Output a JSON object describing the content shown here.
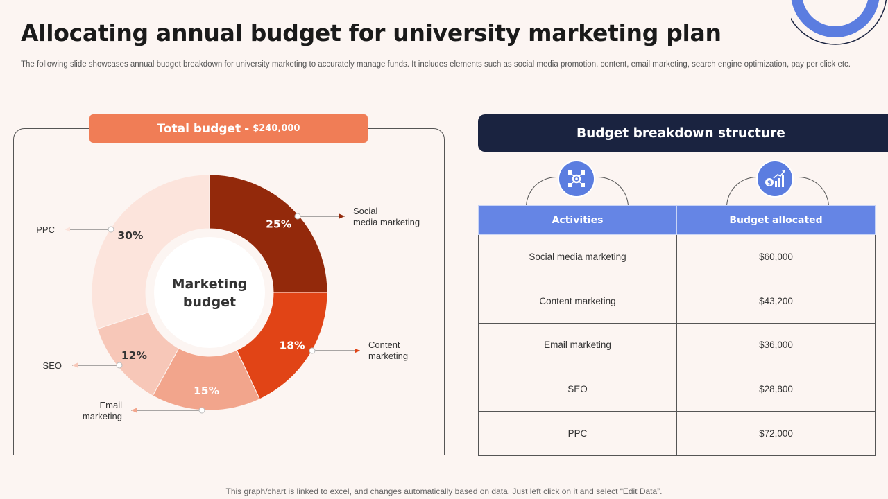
{
  "title": "Allocating annual budget for university marketing plan",
  "subtitle": "The following slide showcases annual budget breakdown for university marketing to accurately manage funds. It includes elements such as social media promotion, content, email marketing, search engine optimization, pay per click etc.",
  "total_budget": {
    "label": "Total budget",
    "separator": "-",
    "value": "$240,000"
  },
  "chart_data": {
    "type": "pie",
    "center_label_line1": "Marketing",
    "center_label_line2": "budget",
    "slices": [
      {
        "label_line1": "Social",
        "label_line2": "media marketing",
        "value": 25,
        "display": "25%",
        "color": "#93290b"
      },
      {
        "label_line1": "Content",
        "label_line2": "marketing",
        "value": 18,
        "display": "18%",
        "color": "#e14416"
      },
      {
        "label_line1": "Email",
        "label_line2": "marketing",
        "value": 15,
        "display": "15%",
        "color": "#f2a58c"
      },
      {
        "label_line1": "SEO",
        "label_line2": "",
        "value": 12,
        "display": "12%",
        "color": "#f7c7b8"
      },
      {
        "label_line1": "PPC",
        "label_line2": "",
        "value": 30,
        "display": "30%",
        "color": "#fce4dc"
      }
    ]
  },
  "breakdown": {
    "header": "Budget breakdown structure",
    "icons": [
      "network-gear-icon",
      "dollar-chart-icon"
    ],
    "columns": [
      "Activities",
      "Budget allocated"
    ],
    "rows": [
      [
        "Social media marketing",
        "$60,000"
      ],
      [
        "Content marketing",
        "$43,200"
      ],
      [
        "Email marketing",
        "$36,000"
      ],
      [
        "SEO",
        "$28,800"
      ],
      [
        "PPC",
        "$72,000"
      ]
    ]
  },
  "footer": "This graph/chart is linked to excel,  and changes automatically based on data. Just left click on it and select “Edit Data”."
}
